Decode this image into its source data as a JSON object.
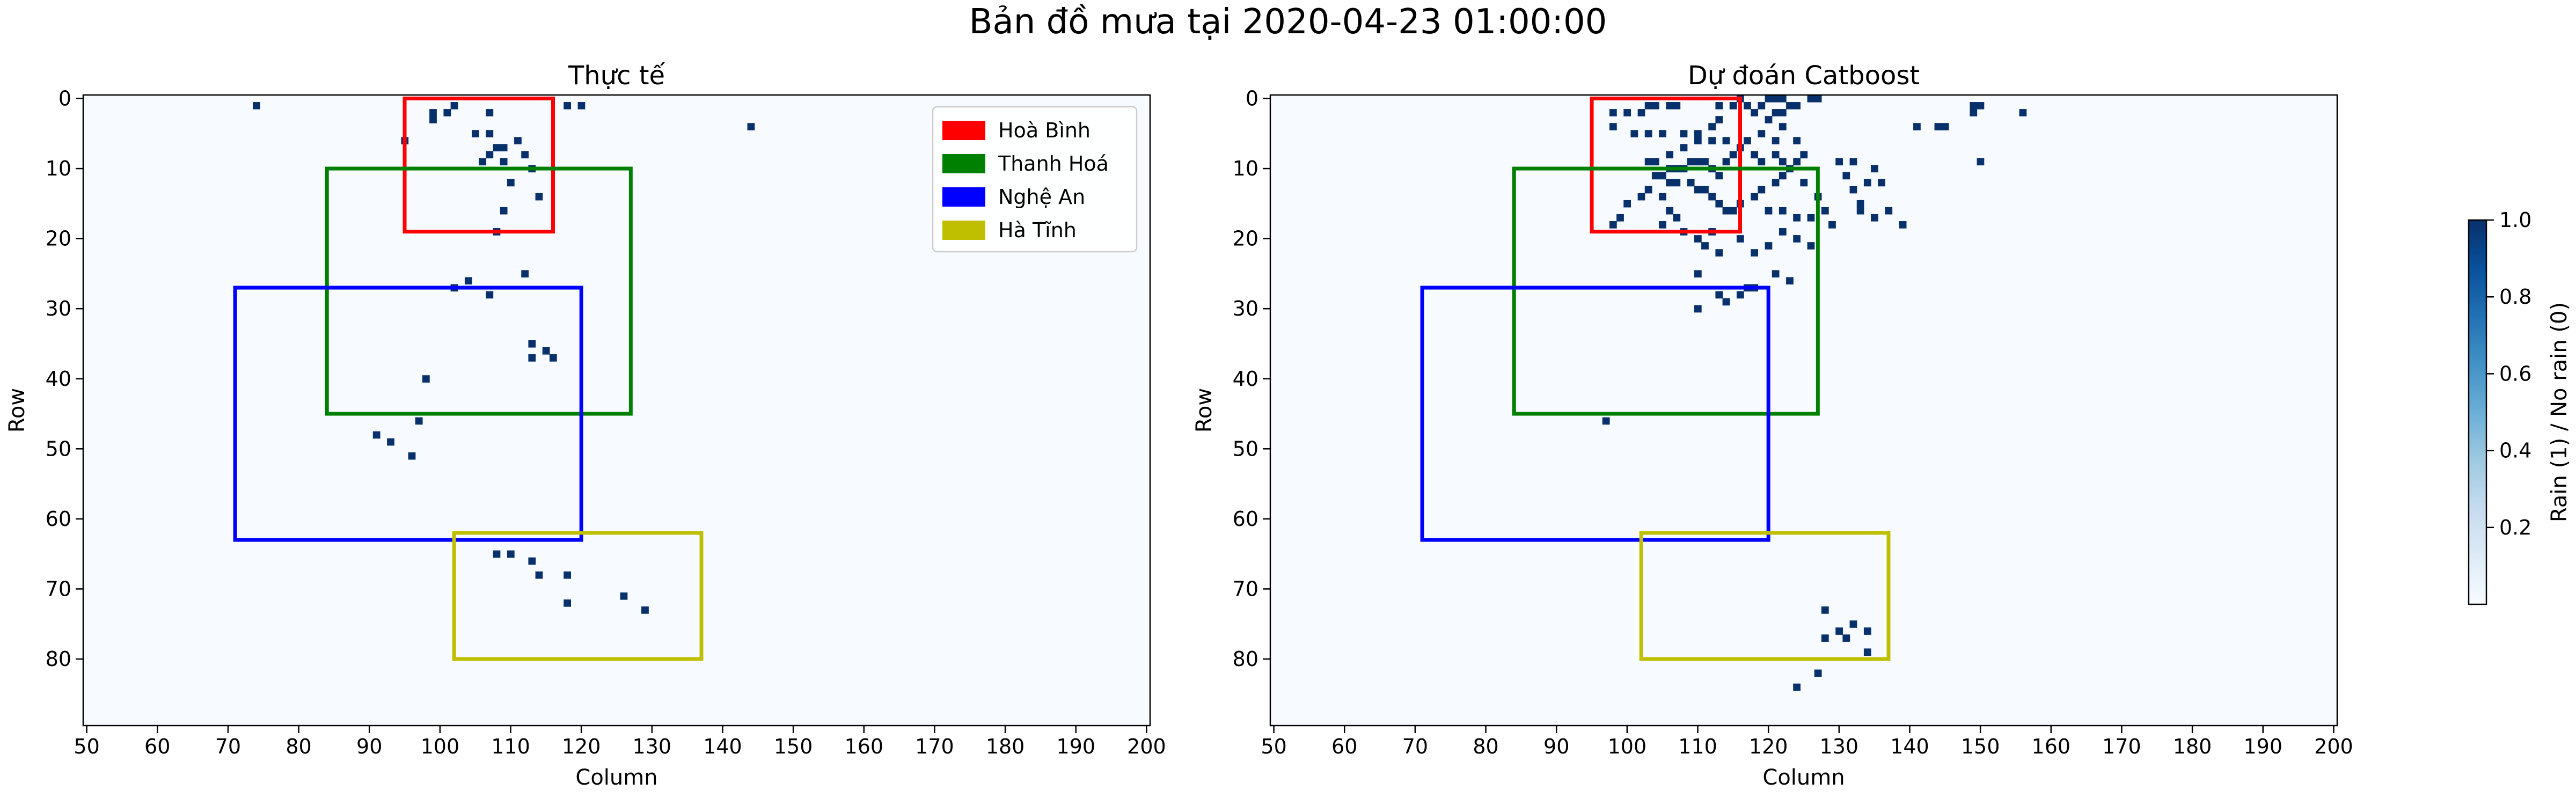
{
  "suptitle": "Bản đồ mưa tại 2020-04-23 01:00:00",
  "colorbar": {
    "label": "Rain (1) / No rain (0)",
    "range": [
      0,
      1
    ],
    "ticks": [
      "0.2",
      "0.4",
      "0.6",
      "0.8",
      "1.0"
    ],
    "tick_values": [
      0.2,
      0.4,
      0.6,
      0.8,
      1.0
    ],
    "colors": [
      "#f7fbff",
      "#deebf7",
      "#c6dbef",
      "#9ecae1",
      "#6baed6",
      "#4292c6",
      "#2171b5",
      "#08519c",
      "#08306b"
    ]
  },
  "chart_data": [
    {
      "type": "heatmap",
      "title": "Thực tế",
      "xlabel": "Column",
      "ylabel": "Row",
      "xlim": [
        49.5,
        200.5
      ],
      "ylim": [
        89.5,
        -0.5
      ],
      "xticks": [
        50,
        60,
        70,
        80,
        90,
        100,
        110,
        120,
        130,
        140,
        150,
        160,
        170,
        180,
        190,
        200
      ],
      "yticks": [
        0,
        10,
        20,
        30,
        40,
        50,
        60,
        70,
        80
      ],
      "background_value": 0,
      "rain_cells": [
        [
          74,
          1
        ],
        [
          95,
          6
        ],
        [
          99,
          2
        ],
        [
          99,
          3
        ],
        [
          101,
          2
        ],
        [
          102,
          1
        ],
        [
          105,
          5
        ],
        [
          107,
          2
        ],
        [
          107,
          5
        ],
        [
          107,
          8
        ],
        [
          108,
          7
        ],
        [
          109,
          7
        ],
        [
          111,
          6
        ],
        [
          109,
          9
        ],
        [
          112,
          8
        ],
        [
          113,
          10
        ],
        [
          110,
          12
        ],
        [
          109,
          16
        ],
        [
          114,
          14
        ],
        [
          108,
          19
        ],
        [
          118,
          1
        ],
        [
          120,
          1
        ],
        [
          144,
          4
        ],
        [
          106,
          9
        ],
        [
          102,
          27
        ],
        [
          104,
          26
        ],
        [
          107,
          28
        ],
        [
          112,
          25
        ],
        [
          113,
          35
        ],
        [
          113,
          37
        ],
        [
          115,
          36
        ],
        [
          116,
          37
        ],
        [
          98,
          40
        ],
        [
          97,
          46
        ],
        [
          91,
          48
        ],
        [
          93,
          49
        ],
        [
          96,
          51
        ],
        [
          108,
          65
        ],
        [
          110,
          65
        ],
        [
          113,
          66
        ],
        [
          114,
          68
        ],
        [
          118,
          68
        ],
        [
          118,
          72
        ],
        [
          126,
          71
        ],
        [
          129,
          73
        ]
      ],
      "regions": [
        {
          "name": "Hoà Bình",
          "color": "#ff0000",
          "x": [
            95,
            116
          ],
          "y": [
            0,
            19
          ]
        },
        {
          "name": "Thanh Hoá",
          "color": "#008000",
          "x": [
            84,
            127
          ],
          "y": [
            10,
            45
          ]
        },
        {
          "name": "Nghệ An",
          "color": "#0000ff",
          "x": [
            71,
            120
          ],
          "y": [
            27,
            63
          ]
        },
        {
          "name": "Hà Tĩnh",
          "color": "#bfbf00",
          "x": [
            102,
            137
          ],
          "y": [
            62,
            80
          ]
        }
      ],
      "legend": {
        "placement": "top-right",
        "entries": [
          "Hoà Bình",
          "Thanh Hoá",
          "Nghệ An",
          "Hà Tĩnh"
        ]
      }
    },
    {
      "type": "heatmap",
      "title": "Dự đoán Catboost",
      "xlabel": "Column",
      "ylabel": "Row",
      "xlim": [
        49.5,
        200.5
      ],
      "ylim": [
        89.5,
        -0.5
      ],
      "xticks": [
        50,
        60,
        70,
        80,
        90,
        100,
        110,
        120,
        130,
        140,
        150,
        160,
        170,
        180,
        190,
        200
      ],
      "yticks": [
        0,
        10,
        20,
        30,
        40,
        50,
        60,
        70,
        80
      ],
      "background_value": 0,
      "rain_cells": [
        [
          98,
          2
        ],
        [
          100,
          2
        ],
        [
          102,
          2
        ],
        [
          103,
          1
        ],
        [
          104,
          1
        ],
        [
          106,
          1
        ],
        [
          107,
          1
        ],
        [
          98,
          4
        ],
        [
          101,
          5
        ],
        [
          103,
          5
        ],
        [
          105,
          5
        ],
        [
          108,
          5
        ],
        [
          110,
          5
        ],
        [
          112,
          4
        ],
        [
          113,
          3
        ],
        [
          113,
          1
        ],
        [
          115,
          1
        ],
        [
          116,
          0
        ],
        [
          117,
          1
        ],
        [
          118,
          2
        ],
        [
          119,
          1
        ],
        [
          120,
          0
        ],
        [
          121,
          0
        ],
        [
          122,
          0
        ],
        [
          123,
          1
        ],
        [
          124,
          1
        ],
        [
          126,
          0
        ],
        [
          127,
          0
        ],
        [
          121,
          2
        ],
        [
          122,
          2
        ],
        [
          120,
          3
        ],
        [
          122,
          4
        ],
        [
          119,
          5
        ],
        [
          121,
          6
        ],
        [
          117,
          6
        ],
        [
          114,
          6
        ],
        [
          112,
          6
        ],
        [
          110,
          6
        ],
        [
          108,
          7
        ],
        [
          106,
          8
        ],
        [
          104,
          9
        ],
        [
          103,
          9
        ],
        [
          106,
          10
        ],
        [
          107,
          10
        ],
        [
          108,
          10
        ],
        [
          109,
          9
        ],
        [
          110,
          9
        ],
        [
          111,
          9
        ],
        [
          112,
          10
        ],
        [
          113,
          11
        ],
        [
          114,
          9
        ],
        [
          115,
          8
        ],
        [
          116,
          7
        ],
        [
          118,
          8
        ],
        [
          119,
          9
        ],
        [
          121,
          8
        ],
        [
          122,
          9
        ],
        [
          124,
          9
        ],
        [
          125,
          8
        ],
        [
          124,
          6
        ],
        [
          104,
          11
        ],
        [
          105,
          11
        ],
        [
          106,
          12
        ],
        [
          107,
          12
        ],
        [
          109,
          12
        ],
        [
          110,
          13
        ],
        [
          111,
          13
        ],
        [
          112,
          14
        ],
        [
          113,
          15
        ],
        [
          114,
          16
        ],
        [
          115,
          16
        ],
        [
          116,
          15
        ],
        [
          118,
          14
        ],
        [
          119,
          13
        ],
        [
          121,
          12
        ],
        [
          122,
          11
        ],
        [
          123,
          10
        ],
        [
          125,
          12
        ],
        [
          127,
          14
        ],
        [
          128,
          16
        ],
        [
          129,
          18
        ],
        [
          126,
          17
        ],
        [
          124,
          17
        ],
        [
          122,
          16
        ],
        [
          120,
          16
        ],
        [
          99,
          17
        ],
        [
          100,
          15
        ],
        [
          102,
          14
        ],
        [
          103,
          13
        ],
        [
          105,
          14
        ],
        [
          106,
          16
        ],
        [
          107,
          17
        ],
        [
          108,
          19
        ],
        [
          110,
          20
        ],
        [
          111,
          21
        ],
        [
          112,
          19
        ],
        [
          113,
          22
        ],
        [
          116,
          20
        ],
        [
          118,
          22
        ],
        [
          120,
          21
        ],
        [
          122,
          19
        ],
        [
          124,
          20
        ],
        [
          126,
          21
        ],
        [
          105,
          18
        ],
        [
          98,
          18
        ],
        [
          130,
          9
        ],
        [
          131,
          11
        ],
        [
          132,
          9
        ],
        [
          132,
          13
        ],
        [
          133,
          15
        ],
        [
          134,
          12
        ],
        [
          135,
          10
        ],
        [
          136,
          12
        ],
        [
          135,
          17
        ],
        [
          137,
          16
        ],
        [
          139,
          18
        ],
        [
          133,
          16
        ],
        [
          141,
          4
        ],
        [
          144,
          4
        ],
        [
          145,
          4
        ],
        [
          149,
          1
        ],
        [
          150,
          1
        ],
        [
          149,
          2
        ],
        [
          150,
          9
        ],
        [
          156,
          2
        ],
        [
          110,
          25
        ],
        [
          113,
          28
        ],
        [
          114,
          29
        ],
        [
          116,
          28
        ],
        [
          117,
          27
        ],
        [
          118,
          27
        ],
        [
          121,
          25
        ],
        [
          123,
          26
        ],
        [
          110,
          30
        ],
        [
          97,
          46
        ],
        [
          128,
          73
        ],
        [
          128,
          77
        ],
        [
          130,
          76
        ],
        [
          131,
          77
        ],
        [
          132,
          75
        ],
        [
          134,
          76
        ],
        [
          134,
          79
        ],
        [
          127,
          82
        ],
        [
          124,
          84
        ]
      ],
      "regions": [
        {
          "name": "Hoà Bình",
          "color": "#ff0000",
          "x": [
            95,
            116
          ],
          "y": [
            0,
            19
          ]
        },
        {
          "name": "Thanh Hoá",
          "color": "#008000",
          "x": [
            84,
            127
          ],
          "y": [
            10,
            45
          ]
        },
        {
          "name": "Nghệ An",
          "color": "#0000ff",
          "x": [
            71,
            120
          ],
          "y": [
            27,
            63
          ]
        },
        {
          "name": "Hà Tĩnh",
          "color": "#bfbf00",
          "x": [
            102,
            137
          ],
          "y": [
            62,
            80
          ]
        }
      ]
    }
  ]
}
